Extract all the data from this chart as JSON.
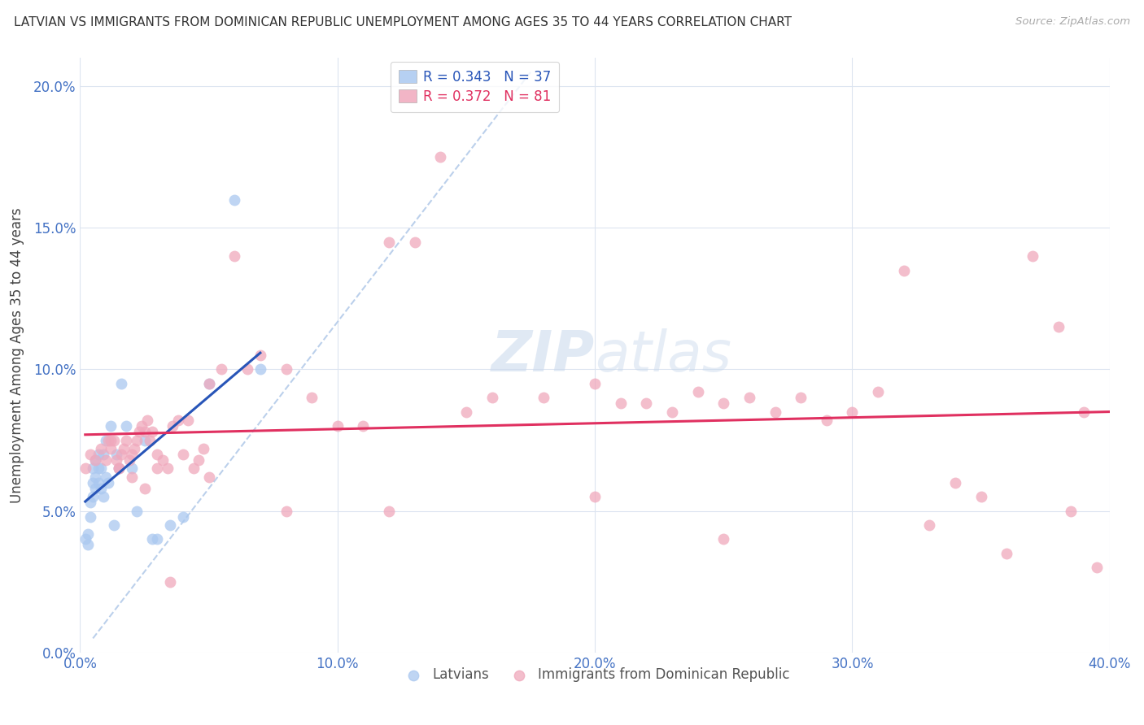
{
  "title": "LATVIAN VS IMMIGRANTS FROM DOMINICAN REPUBLIC UNEMPLOYMENT AMONG AGES 35 TO 44 YEARS CORRELATION CHART",
  "source": "Source: ZipAtlas.com",
  "ylabel": "Unemployment Among Ages 35 to 44 years",
  "label_latvians": "Latvians",
  "label_dominican": "Immigrants from Dominican Republic",
  "xlim": [
    0.0,
    0.4
  ],
  "ylim": [
    0.0,
    0.21
  ],
  "yticks": [
    0.0,
    0.05,
    0.1,
    0.15,
    0.2
  ],
  "xticks": [
    0.0,
    0.1,
    0.2,
    0.3,
    0.4
  ],
  "latvian_R": "0.343",
  "latvian_N": 37,
  "dominican_R": "0.372",
  "dominican_N": 81,
  "latvian_dot_color": "#aac8f0",
  "dominican_dot_color": "#f0a8bc",
  "latvian_line_color": "#2855b8",
  "dominican_line_color": "#e03060",
  "grid_color": "#dce4f0",
  "latvian_x": [
    0.002,
    0.003,
    0.003,
    0.004,
    0.004,
    0.005,
    0.005,
    0.005,
    0.006,
    0.006,
    0.006,
    0.007,
    0.007,
    0.007,
    0.008,
    0.008,
    0.009,
    0.009,
    0.01,
    0.01,
    0.011,
    0.012,
    0.013,
    0.014,
    0.015,
    0.016,
    0.018,
    0.02,
    0.022,
    0.025,
    0.028,
    0.03,
    0.035,
    0.04,
    0.05,
    0.06,
    0.07
  ],
  "latvian_y": [
    0.04,
    0.038,
    0.042,
    0.048,
    0.053,
    0.055,
    0.06,
    0.065,
    0.058,
    0.062,
    0.068,
    0.06,
    0.065,
    0.07,
    0.058,
    0.065,
    0.055,
    0.07,
    0.062,
    0.075,
    0.06,
    0.08,
    0.045,
    0.07,
    0.065,
    0.095,
    0.08,
    0.065,
    0.05,
    0.075,
    0.04,
    0.04,
    0.045,
    0.048,
    0.095,
    0.16,
    0.1
  ],
  "dominican_x": [
    0.002,
    0.004,
    0.006,
    0.008,
    0.01,
    0.011,
    0.012,
    0.013,
    0.014,
    0.015,
    0.016,
    0.017,
    0.018,
    0.019,
    0.02,
    0.021,
    0.022,
    0.023,
    0.024,
    0.025,
    0.026,
    0.027,
    0.028,
    0.03,
    0.032,
    0.034,
    0.036,
    0.038,
    0.04,
    0.042,
    0.044,
    0.046,
    0.048,
    0.05,
    0.055,
    0.06,
    0.065,
    0.07,
    0.08,
    0.09,
    0.1,
    0.11,
    0.12,
    0.13,
    0.14,
    0.15,
    0.16,
    0.18,
    0.2,
    0.21,
    0.22,
    0.23,
    0.24,
    0.25,
    0.26,
    0.27,
    0.28,
    0.29,
    0.3,
    0.31,
    0.32,
    0.33,
    0.34,
    0.35,
    0.36,
    0.37,
    0.38,
    0.385,
    0.39,
    0.395,
    0.012,
    0.015,
    0.02,
    0.025,
    0.03,
    0.035,
    0.05,
    0.08,
    0.12,
    0.2,
    0.25
  ],
  "dominican_y": [
    0.065,
    0.07,
    0.068,
    0.072,
    0.068,
    0.075,
    0.072,
    0.075,
    0.068,
    0.065,
    0.07,
    0.072,
    0.075,
    0.068,
    0.07,
    0.072,
    0.075,
    0.078,
    0.08,
    0.078,
    0.082,
    0.075,
    0.078,
    0.065,
    0.068,
    0.065,
    0.08,
    0.082,
    0.07,
    0.082,
    0.065,
    0.068,
    0.072,
    0.095,
    0.1,
    0.14,
    0.1,
    0.105,
    0.1,
    0.09,
    0.08,
    0.08,
    0.145,
    0.145,
    0.175,
    0.085,
    0.09,
    0.09,
    0.095,
    0.088,
    0.088,
    0.085,
    0.092,
    0.088,
    0.09,
    0.085,
    0.09,
    0.082,
    0.085,
    0.092,
    0.135,
    0.045,
    0.06,
    0.055,
    0.035,
    0.14,
    0.115,
    0.05,
    0.085,
    0.03,
    0.075,
    0.065,
    0.062,
    0.058,
    0.07,
    0.025,
    0.062,
    0.05,
    0.05,
    0.055,
    0.04
  ]
}
